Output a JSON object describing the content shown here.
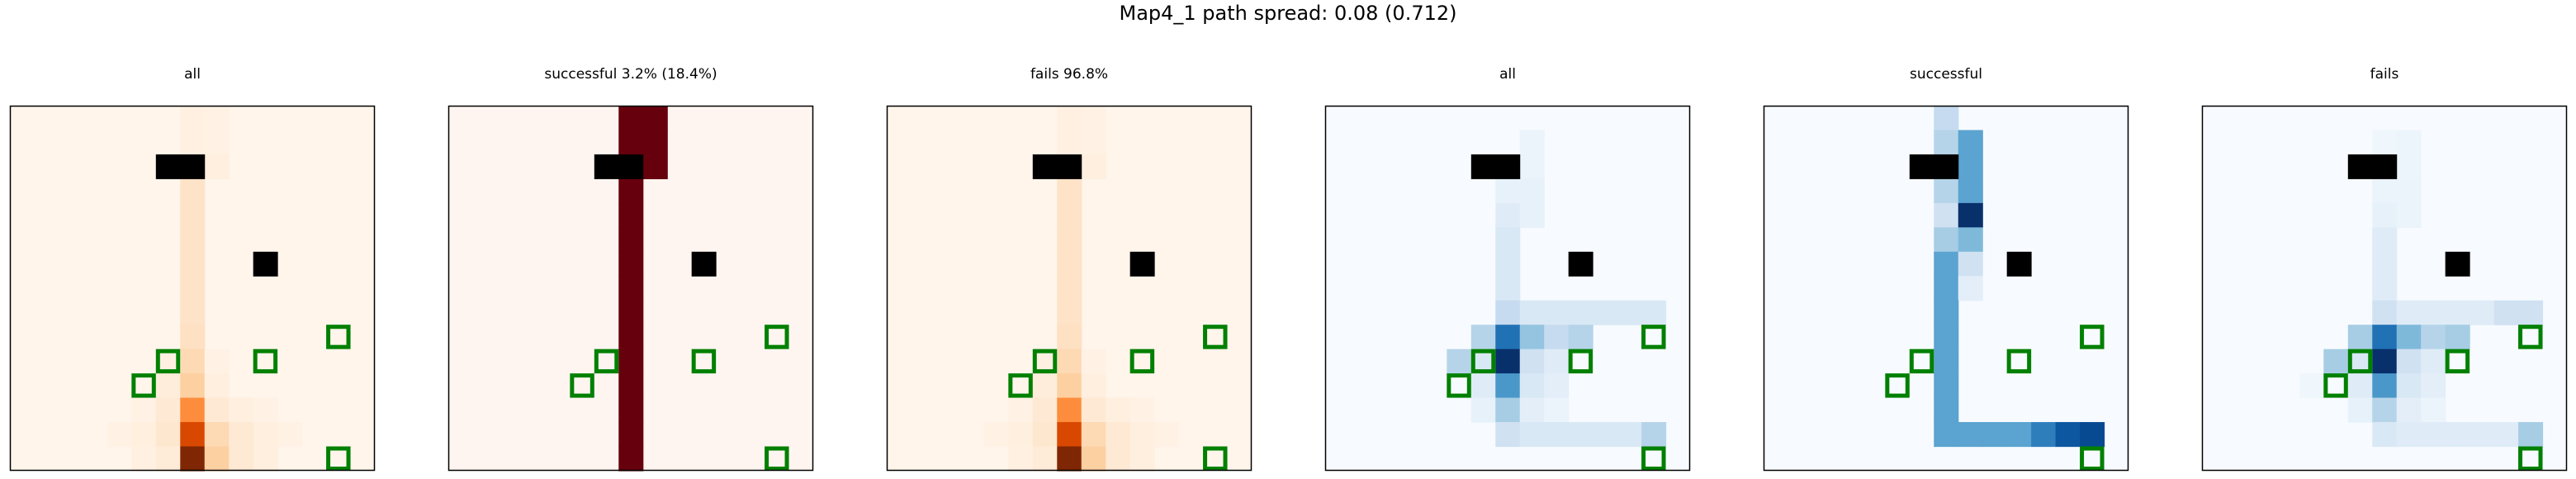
{
  "figure": {
    "suptitle": "Map4_1 path spread: 0.08 (0.712)"
  },
  "chart_data": [
    {
      "type": "heatmap",
      "title": "all",
      "colormap": "Oranges",
      "grid_size": [
        15,
        15
      ],
      "ticks": false,
      "cells": [
        {
          "c": 7,
          "r": 0,
          "v": 0.04
        },
        {
          "c": 8,
          "r": 0,
          "v": 0.03
        },
        {
          "c": 7,
          "r": 1,
          "v": 0.04
        },
        {
          "c": 8,
          "r": 1,
          "v": 0.03
        },
        {
          "c": 7,
          "r": 2,
          "v": 0.06
        },
        {
          "c": 8,
          "r": 2,
          "v": 0.05
        },
        {
          "c": 7,
          "r": 3,
          "v": 0.14
        },
        {
          "c": 7,
          "r": 4,
          "v": 0.14
        },
        {
          "c": 7,
          "r": 5,
          "v": 0.14
        },
        {
          "c": 7,
          "r": 6,
          "v": 0.14
        },
        {
          "c": 7,
          "r": 7,
          "v": 0.14
        },
        {
          "c": 7,
          "r": 8,
          "v": 0.14
        },
        {
          "c": 7,
          "r": 9,
          "v": 0.16
        },
        {
          "c": 7,
          "r": 10,
          "v": 0.2
        },
        {
          "c": 6,
          "r": 10,
          "v": 0.04
        },
        {
          "c": 8,
          "r": 10,
          "v": 0.03
        },
        {
          "c": 6,
          "r": 11,
          "v": 0.07
        },
        {
          "c": 7,
          "r": 11,
          "v": 0.25
        },
        {
          "c": 8,
          "r": 11,
          "v": 0.05
        },
        {
          "c": 5,
          "r": 12,
          "v": 0.03
        },
        {
          "c": 6,
          "r": 12,
          "v": 0.1
        },
        {
          "c": 7,
          "r": 12,
          "v": 0.5
        },
        {
          "c": 8,
          "r": 12,
          "v": 0.1
        },
        {
          "c": 9,
          "r": 12,
          "v": 0.05
        },
        {
          "c": 10,
          "r": 12,
          "v": 0.03
        },
        {
          "c": 4,
          "r": 13,
          "v": 0.03
        },
        {
          "c": 5,
          "r": 13,
          "v": 0.05
        },
        {
          "c": 6,
          "r": 13,
          "v": 0.12
        },
        {
          "c": 7,
          "r": 13,
          "v": 0.75
        },
        {
          "c": 8,
          "r": 13,
          "v": 0.2
        },
        {
          "c": 9,
          "r": 13,
          "v": 0.1
        },
        {
          "c": 10,
          "r": 13,
          "v": 0.05
        },
        {
          "c": 11,
          "r": 13,
          "v": 0.03
        },
        {
          "c": 5,
          "r": 14,
          "v": 0.04
        },
        {
          "c": 6,
          "r": 14,
          "v": 0.08
        },
        {
          "c": 7,
          "r": 14,
          "v": 1.0
        },
        {
          "c": 8,
          "r": 14,
          "v": 0.25
        },
        {
          "c": 9,
          "r": 14,
          "v": 0.1
        },
        {
          "c": 10,
          "r": 14,
          "v": 0.05
        }
      ]
    },
    {
      "type": "heatmap",
      "title": "successful 3.2% (18.4%)",
      "colormap": "Reds",
      "grid_size": [
        15,
        15
      ],
      "ticks": false,
      "cells": [
        {
          "c": 7,
          "r": 0,
          "v": 1
        },
        {
          "c": 8,
          "r": 0,
          "v": 1
        },
        {
          "c": 7,
          "r": 1,
          "v": 1
        },
        {
          "c": 8,
          "r": 1,
          "v": 1
        },
        {
          "c": 7,
          "r": 2,
          "v": 1
        },
        {
          "c": 8,
          "r": 2,
          "v": 1
        },
        {
          "c": 7,
          "r": 3,
          "v": 1
        },
        {
          "c": 7,
          "r": 4,
          "v": 1
        },
        {
          "c": 7,
          "r": 5,
          "v": 1
        },
        {
          "c": 7,
          "r": 6,
          "v": 1
        },
        {
          "c": 7,
          "r": 7,
          "v": 1
        },
        {
          "c": 7,
          "r": 8,
          "v": 1
        },
        {
          "c": 7,
          "r": 9,
          "v": 1
        },
        {
          "c": 7,
          "r": 10,
          "v": 1
        },
        {
          "c": 7,
          "r": 11,
          "v": 1
        },
        {
          "c": 7,
          "r": 12,
          "v": 1
        },
        {
          "c": 7,
          "r": 13,
          "v": 1
        },
        {
          "c": 7,
          "r": 14,
          "v": 1
        }
      ]
    },
    {
      "type": "heatmap",
      "title": "fails 96.8%",
      "colormap": "Oranges",
      "grid_size": [
        15,
        15
      ],
      "ticks": false,
      "cells": [
        {
          "c": 7,
          "r": 0,
          "v": 0.04
        },
        {
          "c": 8,
          "r": 0,
          "v": 0.03
        },
        {
          "c": 7,
          "r": 1,
          "v": 0.04
        },
        {
          "c": 8,
          "r": 1,
          "v": 0.03
        },
        {
          "c": 7,
          "r": 2,
          "v": 0.06
        },
        {
          "c": 8,
          "r": 2,
          "v": 0.05
        },
        {
          "c": 7,
          "r": 3,
          "v": 0.14
        },
        {
          "c": 7,
          "r": 4,
          "v": 0.14
        },
        {
          "c": 7,
          "r": 5,
          "v": 0.14
        },
        {
          "c": 7,
          "r": 6,
          "v": 0.14
        },
        {
          "c": 7,
          "r": 7,
          "v": 0.14
        },
        {
          "c": 7,
          "r": 8,
          "v": 0.14
        },
        {
          "c": 7,
          "r": 9,
          "v": 0.16
        },
        {
          "c": 7,
          "r": 10,
          "v": 0.2
        },
        {
          "c": 6,
          "r": 10,
          "v": 0.04
        },
        {
          "c": 8,
          "r": 10,
          "v": 0.03
        },
        {
          "c": 6,
          "r": 11,
          "v": 0.07
        },
        {
          "c": 7,
          "r": 11,
          "v": 0.25
        },
        {
          "c": 8,
          "r": 11,
          "v": 0.05
        },
        {
          "c": 5,
          "r": 12,
          "v": 0.03
        },
        {
          "c": 6,
          "r": 12,
          "v": 0.1
        },
        {
          "c": 7,
          "r": 12,
          "v": 0.5
        },
        {
          "c": 8,
          "r": 12,
          "v": 0.1
        },
        {
          "c": 9,
          "r": 12,
          "v": 0.05
        },
        {
          "c": 10,
          "r": 12,
          "v": 0.03
        },
        {
          "c": 4,
          "r": 13,
          "v": 0.03
        },
        {
          "c": 5,
          "r": 13,
          "v": 0.05
        },
        {
          "c": 6,
          "r": 13,
          "v": 0.12
        },
        {
          "c": 7,
          "r": 13,
          "v": 0.75
        },
        {
          "c": 8,
          "r": 13,
          "v": 0.2
        },
        {
          "c": 9,
          "r": 13,
          "v": 0.1
        },
        {
          "c": 10,
          "r": 13,
          "v": 0.05
        },
        {
          "c": 11,
          "r": 13,
          "v": 0.03
        },
        {
          "c": 5,
          "r": 14,
          "v": 0.04
        },
        {
          "c": 6,
          "r": 14,
          "v": 0.08
        },
        {
          "c": 7,
          "r": 14,
          "v": 1.0
        },
        {
          "c": 8,
          "r": 14,
          "v": 0.25
        },
        {
          "c": 9,
          "r": 14,
          "v": 0.1
        },
        {
          "c": 10,
          "r": 14,
          "v": 0.05
        }
      ]
    },
    {
      "type": "heatmap",
      "title": "all",
      "colormap": "Blues",
      "grid_size": [
        15,
        15
      ],
      "ticks": false,
      "cells": [
        {
          "c": 8,
          "r": 1,
          "v": 0.06
        },
        {
          "c": 8,
          "r": 2,
          "v": 0.06
        },
        {
          "c": 7,
          "r": 3,
          "v": 0.08
        },
        {
          "c": 8,
          "r": 3,
          "v": 0.08
        },
        {
          "c": 7,
          "r": 4,
          "v": 0.12
        },
        {
          "c": 8,
          "r": 4,
          "v": 0.08
        },
        {
          "c": 7,
          "r": 5,
          "v": 0.15
        },
        {
          "c": 7,
          "r": 6,
          "v": 0.15
        },
        {
          "c": 7,
          "r": 7,
          "v": 0.15
        },
        {
          "c": 7,
          "r": 8,
          "v": 0.25
        },
        {
          "c": 8,
          "r": 8,
          "v": 0.15
        },
        {
          "c": 9,
          "r": 8,
          "v": 0.15
        },
        {
          "c": 10,
          "r": 8,
          "v": 0.15
        },
        {
          "c": 11,
          "r": 8,
          "v": 0.15
        },
        {
          "c": 12,
          "r": 8,
          "v": 0.15
        },
        {
          "c": 13,
          "r": 8,
          "v": 0.15
        },
        {
          "c": 6,
          "r": 9,
          "v": 0.3
        },
        {
          "c": 7,
          "r": 9,
          "v": 0.75
        },
        {
          "c": 8,
          "r": 9,
          "v": 0.4
        },
        {
          "c": 9,
          "r": 9,
          "v": 0.25
        },
        {
          "c": 10,
          "r": 9,
          "v": 0.3
        },
        {
          "c": 5,
          "r": 10,
          "v": 0.3
        },
        {
          "c": 6,
          "r": 10,
          "v": 0.15
        },
        {
          "c": 7,
          "r": 10,
          "v": 1.0
        },
        {
          "c": 8,
          "r": 10,
          "v": 0.2
        },
        {
          "c": 9,
          "r": 10,
          "v": 0.12
        },
        {
          "c": 6,
          "r": 11,
          "v": 0.12
        },
        {
          "c": 7,
          "r": 11,
          "v": 0.6
        },
        {
          "c": 8,
          "r": 11,
          "v": 0.15
        },
        {
          "c": 9,
          "r": 11,
          "v": 0.1
        },
        {
          "c": 6,
          "r": 12,
          "v": 0.08
        },
        {
          "c": 7,
          "r": 12,
          "v": 0.35
        },
        {
          "c": 8,
          "r": 12,
          "v": 0.1
        },
        {
          "c": 9,
          "r": 12,
          "v": 0.06
        },
        {
          "c": 7,
          "r": 13,
          "v": 0.2
        },
        {
          "c": 8,
          "r": 13,
          "v": 0.15
        },
        {
          "c": 9,
          "r": 13,
          "v": 0.15
        },
        {
          "c": 10,
          "r": 13,
          "v": 0.15
        },
        {
          "c": 11,
          "r": 13,
          "v": 0.15
        },
        {
          "c": 12,
          "r": 13,
          "v": 0.15
        },
        {
          "c": 13,
          "r": 13,
          "v": 0.3
        }
      ]
    },
    {
      "type": "heatmap",
      "title": "successful",
      "colormap": "Blues",
      "grid_size": [
        15,
        15
      ],
      "ticks": false,
      "cells": [
        {
          "c": 7,
          "r": 0,
          "v": 0.25
        },
        {
          "c": 7,
          "r": 1,
          "v": 0.3
        },
        {
          "c": 8,
          "r": 1,
          "v": 0.55
        },
        {
          "c": 8,
          "r": 2,
          "v": 0.55
        },
        {
          "c": 7,
          "r": 3,
          "v": 0.3
        },
        {
          "c": 8,
          "r": 3,
          "v": 0.55
        },
        {
          "c": 7,
          "r": 4,
          "v": 0.2
        },
        {
          "c": 8,
          "r": 4,
          "v": 1.0
        },
        {
          "c": 7,
          "r": 5,
          "v": 0.35
        },
        {
          "c": 8,
          "r": 5,
          "v": 0.45
        },
        {
          "c": 7,
          "r": 6,
          "v": 0.55
        },
        {
          "c": 8,
          "r": 6,
          "v": 0.2
        },
        {
          "c": 7,
          "r": 7,
          "v": 0.55
        },
        {
          "c": 8,
          "r": 7,
          "v": 0.1
        },
        {
          "c": 7,
          "r": 8,
          "v": 0.55
        },
        {
          "c": 7,
          "r": 9,
          "v": 0.55
        },
        {
          "c": 7,
          "r": 10,
          "v": 0.55
        },
        {
          "c": 7,
          "r": 11,
          "v": 0.55
        },
        {
          "c": 7,
          "r": 12,
          "v": 0.55
        },
        {
          "c": 7,
          "r": 13,
          "v": 0.55
        },
        {
          "c": 8,
          "r": 13,
          "v": 0.55
        },
        {
          "c": 9,
          "r": 13,
          "v": 0.55
        },
        {
          "c": 10,
          "r": 13,
          "v": 0.55
        },
        {
          "c": 11,
          "r": 13,
          "v": 0.7
        },
        {
          "c": 12,
          "r": 13,
          "v": 0.85
        },
        {
          "c": 13,
          "r": 13,
          "v": 0.9
        }
      ]
    },
    {
      "type": "heatmap",
      "title": "fails",
      "colormap": "Blues",
      "grid_size": [
        15,
        15
      ],
      "ticks": false,
      "cells": [
        {
          "c": 7,
          "r": 1,
          "v": 0.04
        },
        {
          "c": 8,
          "r": 1,
          "v": 0.05
        },
        {
          "c": 8,
          "r": 2,
          "v": 0.05
        },
        {
          "c": 7,
          "r": 3,
          "v": 0.06
        },
        {
          "c": 8,
          "r": 3,
          "v": 0.06
        },
        {
          "c": 7,
          "r": 4,
          "v": 0.08
        },
        {
          "c": 8,
          "r": 4,
          "v": 0.06
        },
        {
          "c": 7,
          "r": 5,
          "v": 0.12
        },
        {
          "c": 7,
          "r": 6,
          "v": 0.12
        },
        {
          "c": 7,
          "r": 7,
          "v": 0.12
        },
        {
          "c": 7,
          "r": 8,
          "v": 0.2
        },
        {
          "c": 8,
          "r": 8,
          "v": 0.12
        },
        {
          "c": 9,
          "r": 8,
          "v": 0.12
        },
        {
          "c": 10,
          "r": 8,
          "v": 0.12
        },
        {
          "c": 11,
          "r": 8,
          "v": 0.12
        },
        {
          "c": 12,
          "r": 8,
          "v": 0.2
        },
        {
          "c": 13,
          "r": 8,
          "v": 0.2
        },
        {
          "c": 6,
          "r": 9,
          "v": 0.35
        },
        {
          "c": 7,
          "r": 9,
          "v": 0.75
        },
        {
          "c": 8,
          "r": 9,
          "v": 0.45
        },
        {
          "c": 9,
          "r": 9,
          "v": 0.3
        },
        {
          "c": 10,
          "r": 9,
          "v": 0.35
        },
        {
          "c": 5,
          "r": 10,
          "v": 0.35
        },
        {
          "c": 6,
          "r": 10,
          "v": 0.15
        },
        {
          "c": 7,
          "r": 10,
          "v": 1.0
        },
        {
          "c": 8,
          "r": 10,
          "v": 0.2
        },
        {
          "c": 9,
          "r": 10,
          "v": 0.12
        },
        {
          "c": 4,
          "r": 11,
          "v": 0.04
        },
        {
          "c": 6,
          "r": 11,
          "v": 0.12
        },
        {
          "c": 7,
          "r": 11,
          "v": 0.6
        },
        {
          "c": 8,
          "r": 11,
          "v": 0.15
        },
        {
          "c": 9,
          "r": 11,
          "v": 0.1
        },
        {
          "c": 6,
          "r": 12,
          "v": 0.08
        },
        {
          "c": 7,
          "r": 12,
          "v": 0.3
        },
        {
          "c": 8,
          "r": 12,
          "v": 0.1
        },
        {
          "c": 9,
          "r": 12,
          "v": 0.06
        },
        {
          "c": 7,
          "r": 13,
          "v": 0.15
        },
        {
          "c": 8,
          "r": 13,
          "v": 0.12
        },
        {
          "c": 9,
          "r": 13,
          "v": 0.12
        },
        {
          "c": 10,
          "r": 13,
          "v": 0.12
        },
        {
          "c": 11,
          "r": 13,
          "v": 0.12
        },
        {
          "c": 12,
          "r": 13,
          "v": 0.12
        },
        {
          "c": 13,
          "r": 13,
          "v": 0.35
        }
      ]
    }
  ],
  "map": {
    "obstacles": [
      {
        "c": 6,
        "r": 2
      },
      {
        "c": 7,
        "r": 2
      },
      {
        "c": 10,
        "r": 6
      }
    ],
    "goals": [
      {
        "c": 13,
        "r": 9
      },
      {
        "c": 6,
        "r": 10
      },
      {
        "c": 10,
        "r": 10
      },
      {
        "c": 5,
        "r": 11
      },
      {
        "c": 13,
        "r": 14
      }
    ],
    "colors": {
      "obstacle": "#000000",
      "goal_outline": "#008000",
      "frame": "#000000"
    }
  }
}
